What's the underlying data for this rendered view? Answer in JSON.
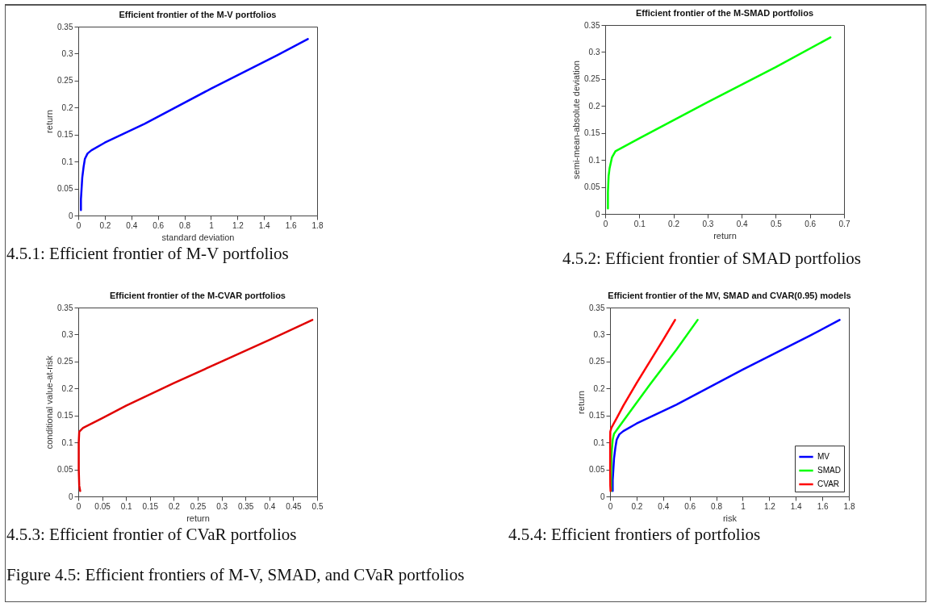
{
  "chart_data": [
    {
      "type": "line",
      "title": "Efficient frontier of the M-V portfolios",
      "xlabel": "standard deviation",
      "ylabel": "return",
      "xlim": [
        0,
        1.8
      ],
      "xticks": [
        0,
        0.2,
        0.4,
        0.6,
        0.8,
        1,
        1.2,
        1.4,
        1.6,
        1.8
      ],
      "ylim": [
        0,
        0.35
      ],
      "yticks": [
        0,
        0.05,
        0.1,
        0.15,
        0.2,
        0.25,
        0.3,
        0.35
      ],
      "grid": false,
      "series": [
        {
          "color": "#0000ff",
          "x": [
            0.02,
            0.02,
            0.025,
            0.03,
            0.04,
            0.05,
            0.07,
            0.1,
            0.2,
            0.5,
            1.0,
            1.5,
            1.73
          ],
          "values": [
            0.01,
            0.03,
            0.05,
            0.07,
            0.09,
            0.105,
            0.115,
            0.121,
            0.135,
            0.17,
            0.235,
            0.297,
            0.327
          ]
        }
      ],
      "annotations": [
        "4.5.1: Efficient frontier of M-V portfolios"
      ]
    },
    {
      "type": "line",
      "title": "Efficient frontier of the M-SMAD portfolios",
      "xlabel": "return",
      "ylabel": "semi-mean-absolute deviation",
      "xlim": [
        0,
        0.7
      ],
      "xticks": [
        0,
        0.1,
        0.2,
        0.3,
        0.4,
        0.5,
        0.6,
        0.7
      ],
      "ylim": [
        0,
        0.35
      ],
      "yticks": [
        0,
        0.05,
        0.1,
        0.15,
        0.2,
        0.25,
        0.3,
        0.35
      ],
      "grid": false,
      "series": [
        {
          "color": "#00ff00",
          "x": [
            0.008,
            0.008,
            0.01,
            0.013,
            0.02,
            0.03,
            0.1,
            0.3,
            0.5,
            0.66
          ],
          "values": [
            0.01,
            0.04,
            0.07,
            0.085,
            0.105,
            0.116,
            0.14,
            0.207,
            0.272,
            0.327
          ]
        }
      ],
      "annotations": [
        "4.5.2: Efficient frontier of SMAD portfolios"
      ]
    },
    {
      "type": "line",
      "title": "Efficient frontier of the M-CVAR portfolios",
      "xlabel": "return",
      "ylabel": "conditional value-at-risk",
      "xlim": [
        0,
        0.5
      ],
      "xticks": [
        0,
        0.05,
        0.1,
        0.15,
        0.2,
        0.25,
        0.3,
        0.35,
        0.4,
        0.45,
        0.5
      ],
      "ylim": [
        0,
        0.35
      ],
      "yticks": [
        0,
        0.05,
        0.1,
        0.15,
        0.2,
        0.25,
        0.3,
        0.35
      ],
      "grid": false,
      "series": [
        {
          "color": "#e00000",
          "x": [
            0.004,
            0.002,
            0.001,
            0.001,
            0.002,
            0.01,
            0.05,
            0.1,
            0.2,
            0.3,
            0.4,
            0.49
          ],
          "values": [
            0.01,
            0.02,
            0.05,
            0.1,
            0.12,
            0.127,
            0.145,
            0.168,
            0.21,
            0.25,
            0.29,
            0.327
          ]
        }
      ],
      "annotations": [
        "4.5.3: Efficient frontier of CVaR portfolios"
      ]
    },
    {
      "type": "line",
      "title": "Efficient frontier of the MV, SMAD and CVAR(0.95) models",
      "xlabel": "risk",
      "ylabel": "return",
      "xlim": [
        0,
        1.8
      ],
      "xticks": [
        0,
        0.2,
        0.4,
        0.6,
        0.8,
        1,
        1.2,
        1.4,
        1.6,
        1.8
      ],
      "ylim": [
        0,
        0.35
      ],
      "yticks": [
        0,
        0.05,
        0.1,
        0.15,
        0.2,
        0.25,
        0.3,
        0.35
      ],
      "grid": false,
      "legend": "bottom right",
      "series": [
        {
          "name": "MV",
          "color": "#0000ff",
          "x": [
            0.02,
            0.02,
            0.025,
            0.03,
            0.04,
            0.05,
            0.07,
            0.1,
            0.2,
            0.5,
            1.0,
            1.5,
            1.73
          ],
          "values": [
            0.01,
            0.03,
            0.05,
            0.07,
            0.09,
            0.105,
            0.115,
            0.121,
            0.135,
            0.17,
            0.235,
            0.297,
            0.327
          ]
        },
        {
          "name": "SMAD",
          "color": "#00ff00",
          "x": [
            0.008,
            0.008,
            0.01,
            0.013,
            0.02,
            0.03,
            0.1,
            0.3,
            0.5,
            0.66
          ],
          "values": [
            0.01,
            0.04,
            0.07,
            0.085,
            0.105,
            0.116,
            0.14,
            0.207,
            0.272,
            0.327
          ]
        },
        {
          "name": "CVAR",
          "color": "#ff0000",
          "x": [
            0.004,
            0.002,
            0.001,
            0.001,
            0.002,
            0.01,
            0.05,
            0.1,
            0.2,
            0.3,
            0.4,
            0.49
          ],
          "values": [
            0.01,
            0.02,
            0.05,
            0.1,
            0.12,
            0.127,
            0.145,
            0.168,
            0.21,
            0.25,
            0.29,
            0.327
          ]
        }
      ],
      "annotations": [
        "4.5.4: Efficient frontiers of portfolios",
        "Figure 4.5: Efficient frontiers of M-V, SMAD, and CVaR portfolios"
      ]
    }
  ]
}
